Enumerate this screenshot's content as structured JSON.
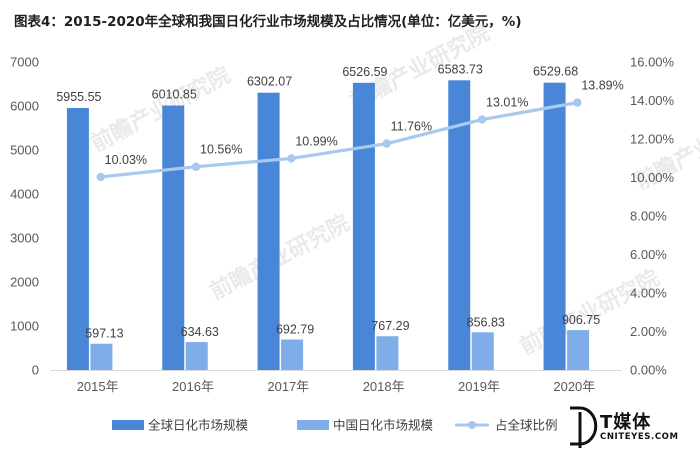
{
  "title": "图表4：2015-2020年全球和我国日化行业市场规模及占比情况(单位：亿美元，%)",
  "colors": {
    "global_bar": "#4a86d8",
    "china_bar": "#7fade8",
    "ratio_line": "#a9c8f0",
    "axis_text": "#595959",
    "grid": "#d9d9d9"
  },
  "watermark": "前瞻产业研究院",
  "brand": {
    "name": "T媒体",
    "domain": "CNITEYES.COM"
  },
  "chart_data": {
    "type": "bar",
    "categories": [
      "2015年",
      "2016年",
      "2017年",
      "2018年",
      "2019年",
      "2020年"
    ],
    "series": [
      {
        "name": "全球日化市场规模",
        "type": "bar",
        "axis": "left",
        "values": [
          5955.55,
          6010.85,
          6302.07,
          6526.59,
          6583.73,
          6529.68
        ],
        "labels": [
          "5955.55",
          "6010.85",
          "6302.07",
          "6526.59",
          "6583.73",
          "6529.68"
        ]
      },
      {
        "name": "中国日化市场规模",
        "type": "bar",
        "axis": "left",
        "values": [
          597.13,
          634.63,
          692.79,
          767.29,
          856.83,
          906.75
        ],
        "labels": [
          "597.13",
          "634.63",
          "692.79",
          "767.29",
          "856.83",
          "906.75"
        ]
      },
      {
        "name": "占全球比例",
        "type": "line",
        "axis": "right",
        "values": [
          10.03,
          10.56,
          10.99,
          11.76,
          13.01,
          13.89
        ],
        "labels": [
          "10.03%",
          "10.56%",
          "10.99%",
          "11.76%",
          "13.01%",
          "13.89%"
        ]
      }
    ],
    "y_left": {
      "min": 0,
      "max": 7000,
      "step": 1000,
      "ticks": [
        "0",
        "1000",
        "2000",
        "3000",
        "4000",
        "5000",
        "6000",
        "7000"
      ]
    },
    "y_right": {
      "min": 0,
      "max": 16,
      "step": 2,
      "ticks": [
        "0.00%",
        "2.00%",
        "4.00%",
        "6.00%",
        "8.00%",
        "10.00%",
        "12.00%",
        "14.00%",
        "16.00%"
      ]
    },
    "legend": {
      "position": "bottom",
      "items": [
        "全球日化市场规模",
        "中国日化市场规模",
        "占全球比例"
      ]
    },
    "grid": false
  }
}
